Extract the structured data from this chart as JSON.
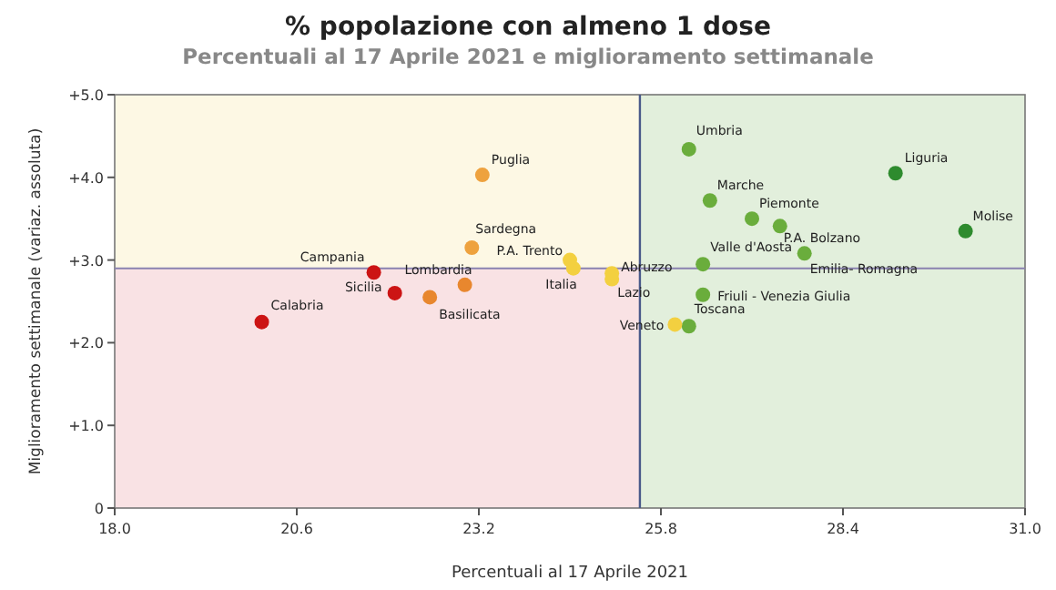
{
  "chart_data": {
    "type": "scatter",
    "title": "% popolazione con almeno 1 dose",
    "subtitle": "Percentuali al 17 Aprile 2021 e miglioramento settimanale",
    "xlabel": "Percentuali al 17 Aprile 2021",
    "ylabel": "Miglioramento settimanale (variaz. assoluta)",
    "xlim": [
      18,
      31
    ],
    "ylim": [
      0,
      5
    ],
    "xticks": [
      {
        "value": 18,
        "label": "18.0"
      },
      {
        "value": 20.6,
        "label": "20.6"
      },
      {
        "value": 23.2,
        "label": "23.2"
      },
      {
        "value": 25.8,
        "label": "25.8"
      },
      {
        "value": 28.4,
        "label": "28.4"
      },
      {
        "value": 31,
        "label": "31.0"
      }
    ],
    "yticks": [
      {
        "value": 0,
        "label": "0"
      },
      {
        "value": 1,
        "label": "+1.0"
      },
      {
        "value": 2,
        "label": "+2.0"
      },
      {
        "value": 3,
        "label": "+3.0"
      },
      {
        "value": 4,
        "label": "+4.0"
      },
      {
        "value": 5,
        "label": "+5.0"
      }
    ],
    "ref_lines": [
      {
        "axis": "x",
        "value": 25.5,
        "color": "#4a5a8a"
      },
      {
        "axis": "y",
        "value": 2.9,
        "color": "#8a82b0"
      }
    ],
    "bands": [
      {
        "axis": "y",
        "from": 2.9,
        "to": 5,
        "color": "#fdf8e4"
      },
      {
        "axis": "y",
        "from": 0,
        "to": 2.9,
        "color": "#f9e2e4"
      },
      {
        "axis": "x",
        "from": 25.5,
        "to": 31,
        "color": "#e2efdc"
      }
    ],
    "marker": "circle",
    "grid": false,
    "series": [
      {
        "name": "Calabria",
        "color": "#cc1414",
        "x": [
          20.1
        ],
        "values": [
          2.25
        ]
      },
      {
        "name": "Campania",
        "color": "#cc1414",
        "x": [
          21.7
        ],
        "values": [
          2.85
        ]
      },
      {
        "name": "Sicilia",
        "color": "#cc1414",
        "x": [
          22.0
        ],
        "values": [
          2.6
        ]
      },
      {
        "name": "Basilicata",
        "color": "#e8872e",
        "x": [
          22.5
        ],
        "values": [
          2.55
        ]
      },
      {
        "name": "Lombardia",
        "color": "#e8872e",
        "x": [
          23.0
        ],
        "values": [
          2.7
        ]
      },
      {
        "name": "Sardegna",
        "color": "#eea23e",
        "x": [
          23.1
        ],
        "values": [
          3.15
        ]
      },
      {
        "name": "Puglia",
        "color": "#eea23e",
        "x": [
          23.25
        ],
        "values": [
          4.03
        ]
      },
      {
        "name": "P.A. Trento",
        "color": "#f3d040",
        "x": [
          24.5
        ],
        "values": [
          3.0
        ]
      },
      {
        "name": "Italia",
        "color": "#f3d040",
        "x": [
          24.55
        ],
        "values": [
          2.9
        ]
      },
      {
        "name": "Abruzzo",
        "color": "#f3d040",
        "x": [
          25.1
        ],
        "values": [
          2.84
        ]
      },
      {
        "name": "Lazio",
        "color": "#f3d040",
        "x": [
          25.1
        ],
        "values": [
          2.77
        ]
      },
      {
        "name": "Veneto",
        "color": "#f3d040",
        "x": [
          26.0
        ],
        "values": [
          2.22
        ]
      },
      {
        "name": "Toscana",
        "color": "#6aad3c",
        "x": [
          26.2
        ],
        "values": [
          2.2
        ]
      },
      {
        "name": "Friuli - Venezia Giulia",
        "color": "#6aad3c",
        "x": [
          26.4
        ],
        "values": [
          2.58
        ]
      },
      {
        "name": "Valle d'Aosta",
        "color": "#6aad3c",
        "x": [
          26.4
        ],
        "values": [
          2.95
        ]
      },
      {
        "name": "Umbria",
        "color": "#6aad3c",
        "x": [
          26.2
        ],
        "values": [
          4.34
        ]
      },
      {
        "name": "Marche",
        "color": "#6aad3c",
        "x": [
          26.5
        ],
        "values": [
          3.72
        ]
      },
      {
        "name": "Piemonte",
        "color": "#6aad3c",
        "x": [
          27.1
        ],
        "values": [
          3.5
        ]
      },
      {
        "name": "P.A. Bolzano",
        "color": "#6aad3c",
        "x": [
          27.5
        ],
        "values": [
          3.41
        ]
      },
      {
        "name": "Emilia- Romagna",
        "color": "#6aad3c",
        "x": [
          27.85
        ],
        "values": [
          3.08
        ]
      },
      {
        "name": "Liguria",
        "color": "#2e8b2e",
        "x": [
          29.15
        ],
        "values": [
          4.05
        ]
      },
      {
        "name": "Molise",
        "color": "#2e8b2e",
        "x": [
          30.15
        ],
        "values": [
          3.35
        ]
      }
    ]
  }
}
